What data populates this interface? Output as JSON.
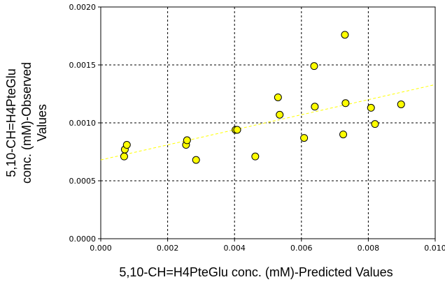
{
  "chart_data": {
    "type": "scatter",
    "title": "",
    "xlabel": "5,10-CH=H4PteGlu conc. (mM)-Predicted Values",
    "ylabel_lines": [
      "5,10-CH=H4PteGlu",
      "conc. (mM)-Observed",
      "Values"
    ],
    "xlim": [
      0,
      0.01
    ],
    "ylim": [
      0,
      0.002
    ],
    "x_ticks": [
      "0.000",
      "0.002",
      "0.004",
      "0.006",
      "0.008",
      "0.010"
    ],
    "y_ticks": [
      "0.0000",
      "0.0005",
      "0.0010",
      "0.0015",
      "0.0020"
    ],
    "x_tick_values": [
      0,
      0.002,
      0.004,
      0.006,
      0.008,
      0.01
    ],
    "y_tick_values": [
      0,
      0.0005,
      0.001,
      0.0015,
      0.002
    ],
    "grid": true,
    "legend": "none",
    "marker_color": "#ffff00",
    "marker_edge_color": "#000000",
    "trend_color": "#ffff00",
    "trendline": {
      "x": [
        0,
        0.01
      ],
      "y": [
        0.00068,
        0.00133
      ]
    },
    "points": [
      {
        "x": 0.0007,
        "y": 0.00071
      },
      {
        "x": 0.00072,
        "y": 0.00077
      },
      {
        "x": 0.00078,
        "y": 0.00081
      },
      {
        "x": 0.00255,
        "y": 0.00081
      },
      {
        "x": 0.00258,
        "y": 0.00085
      },
      {
        "x": 0.00285,
        "y": 0.00068
      },
      {
        "x": 0.00403,
        "y": 0.00094
      },
      {
        "x": 0.00408,
        "y": 0.00094
      },
      {
        "x": 0.00462,
        "y": 0.00071
      },
      {
        "x": 0.0053,
        "y": 0.00122
      },
      {
        "x": 0.00535,
        "y": 0.00107
      },
      {
        "x": 0.00608,
        "y": 0.00087
      },
      {
        "x": 0.00638,
        "y": 0.00149
      },
      {
        "x": 0.0064,
        "y": 0.00114
      },
      {
        "x": 0.00725,
        "y": 0.0009
      },
      {
        "x": 0.0073,
        "y": 0.00176
      },
      {
        "x": 0.00732,
        "y": 0.00117
      },
      {
        "x": 0.00808,
        "y": 0.00113
      },
      {
        "x": 0.0082,
        "y": 0.00099
      },
      {
        "x": 0.00898,
        "y": 0.00116
      }
    ]
  }
}
